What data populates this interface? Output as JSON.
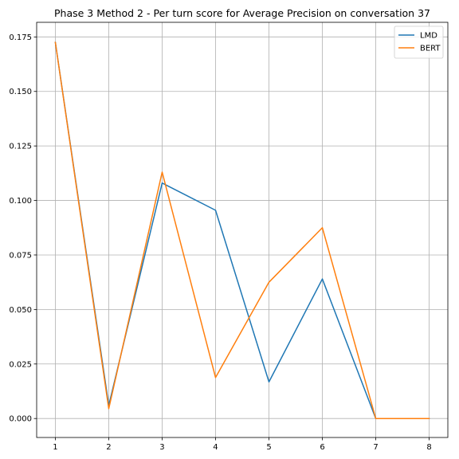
{
  "chart_data": {
    "type": "line",
    "title": "Phase 3 Method 2 - Per turn score for Average Precision on conversation 37",
    "xlabel": "",
    "ylabel": "",
    "x": [
      1,
      2,
      3,
      4,
      5,
      6,
      7,
      8
    ],
    "xticks": [
      1,
      2,
      3,
      4,
      5,
      6,
      7,
      8
    ],
    "xlim": [
      0.65,
      8.35
    ],
    "yticks": [
      0.0,
      0.025,
      0.05,
      0.075,
      0.1,
      0.125,
      0.15,
      0.175
    ],
    "ytick_labels": [
      "0.000",
      "0.025",
      "0.050",
      "0.075",
      "0.100",
      "0.125",
      "0.150",
      "0.175"
    ],
    "ylim": [
      -0.0087,
      0.1817
    ],
    "grid": true,
    "legend_position": "top-right",
    "series": [
      {
        "name": "LMD",
        "color": "#1f77b4",
        "values": [
          0.1725,
          0.006,
          0.108,
          0.0955,
          0.0168,
          0.064,
          0.0,
          0.0
        ]
      },
      {
        "name": "BERT",
        "color": "#ff7f0e",
        "values": [
          0.1725,
          0.0045,
          0.113,
          0.0188,
          0.0625,
          0.0875,
          0.0,
          0.0
        ]
      }
    ]
  }
}
